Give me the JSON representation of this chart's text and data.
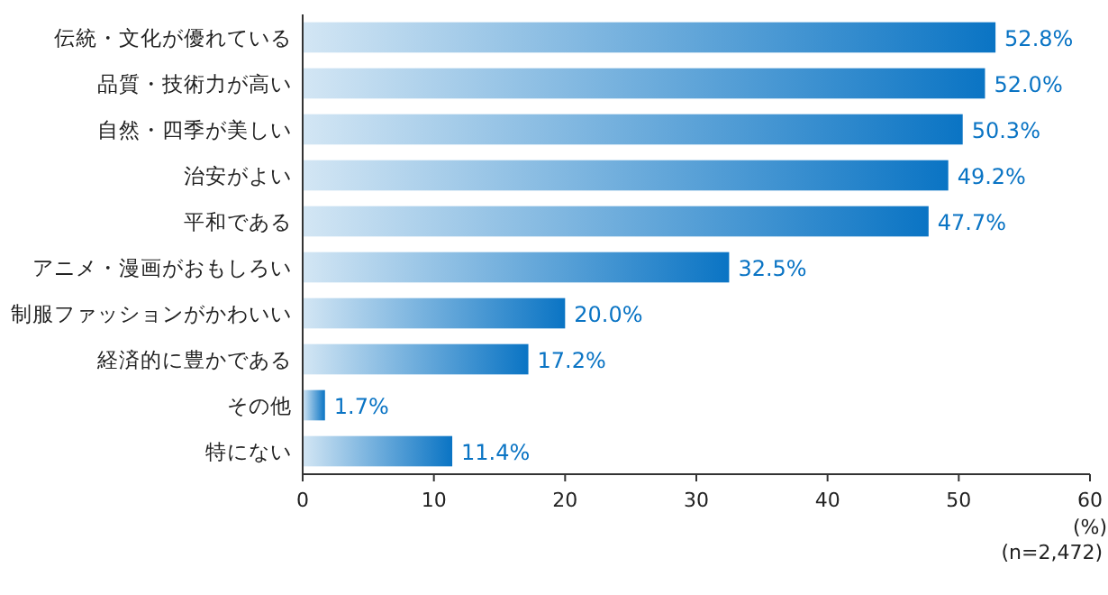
{
  "chart_data": {
    "type": "bar",
    "orientation": "horizontal",
    "categories": [
      "伝統・文化が優れている",
      "品質・技術力が高い",
      "自然・四季が美しい",
      "治安がよい",
      "平和である",
      "アニメ・漫画がおもしろい",
      "制服ファッションがかわいい",
      "経済的に豊かである",
      "その他",
      "特にない"
    ],
    "values": [
      52.8,
      52.0,
      50.3,
      49.2,
      47.7,
      32.5,
      20.0,
      17.2,
      1.7,
      11.4
    ],
    "value_labels": [
      "52.8%",
      "52.0%",
      "50.3%",
      "49.2%",
      "47.7%",
      "32.5%",
      "20.0%",
      "17.2%",
      "1.7%",
      "11.4%"
    ],
    "color": "#0a74c4",
    "xlim": [
      0,
      60
    ],
    "xticks": [
      0,
      10,
      20,
      30,
      40,
      50,
      60
    ],
    "xlabel": "(%)",
    "annotations": [
      "(n=2,472)"
    ],
    "grid": false
  }
}
